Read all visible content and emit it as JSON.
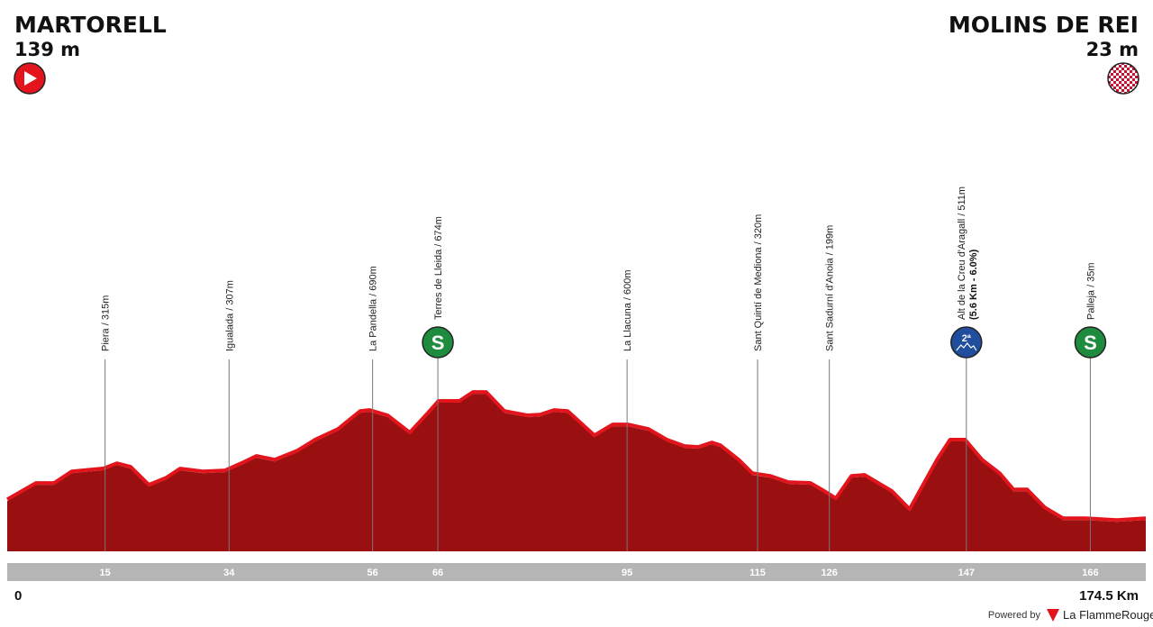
{
  "header": {
    "start": {
      "name": "MARTORELL",
      "elevation": "139 m"
    },
    "finish": {
      "name": "MOLINS DE REI",
      "elevation": "23 m"
    }
  },
  "footer": {
    "powered": "Powered by",
    "brand": "La FlammeRouge"
  },
  "chart_data": {
    "type": "area",
    "x": [
      0,
      4.4,
      7.2,
      9.9,
      14.8,
      16.8,
      18.9,
      21.7,
      24.4,
      26.5,
      30,
      33.4,
      36.2,
      38.2,
      41,
      44.5,
      47.2,
      50.7,
      54.1,
      55.5,
      58.3,
      61.7,
      64.5,
      66.1,
      69.3,
      71.4,
      73.4,
      76.2,
      79.7,
      81.7,
      83.8,
      85.9,
      90,
      92.8,
      95.1,
      98.3,
      101.1,
      103.8,
      105.9,
      108,
      109.3,
      112.1,
      114.2,
      116.9,
      119.7,
      123.1,
      124.8,
      127,
      129.4,
      131.4,
      135.6,
      138.3,
      142.5,
      144.5,
      146.8,
      149.4,
      152.1,
      154.2,
      156.3,
      159,
      161.8,
      165.3,
      170.1,
      174.5
    ],
    "values": [
      139,
      240,
      240,
      312,
      330,
      362,
      340,
      229,
      273,
      329,
      312,
      318,
      368,
      407,
      384,
      440,
      507,
      573,
      684,
      690,
      657,
      551,
      673,
      746,
      746,
      801,
      801,
      684,
      657,
      662,
      690,
      684,
      534,
      601,
      601,
      573,
      507,
      468,
      462,
      490,
      473,
      384,
      301,
      284,
      246,
      240,
      201,
      146,
      284,
      290,
      190,
      79,
      384,
      507,
      507,
      384,
      301,
      201,
      201,
      90,
      23,
      23,
      12,
      23
    ],
    "xlim": [
      0,
      174.5
    ],
    "ylim": [
      -170,
      2550
    ],
    "xticks": [
      0,
      {
        "value": 174.5,
        "label": "174.5 Km"
      }
    ],
    "color": "#9a0f10",
    "line_color": "#e3141c",
    "waypoints": [
      {
        "km": 15,
        "label": "Piera / 315m"
      },
      {
        "km": 34,
        "label": "Igualada / 307m"
      },
      {
        "km": 56,
        "label": "La Pandella / 690m"
      },
      {
        "km": 66,
        "label": "Terres de Lleida / 674m",
        "badge": "S",
        "badge_color": "#1e8b3e"
      },
      {
        "km": 95,
        "label": "La Llacuna / 600m"
      },
      {
        "km": 115,
        "label": "Sant Quintí de Mediona / 320m"
      },
      {
        "km": 126,
        "label": "Sant Sadurní d'Anoia / 199m"
      },
      {
        "km": 147,
        "label": "Alt de la Creu d'Aragall / 511m",
        "detail": "(5.6 Km - 6.0%)",
        "badge": "2ª",
        "badge_color": "#1f4e9c"
      },
      {
        "km": 166,
        "label": "Palleja / 35m",
        "badge": "S",
        "badge_color": "#1e8b3e"
      }
    ]
  }
}
